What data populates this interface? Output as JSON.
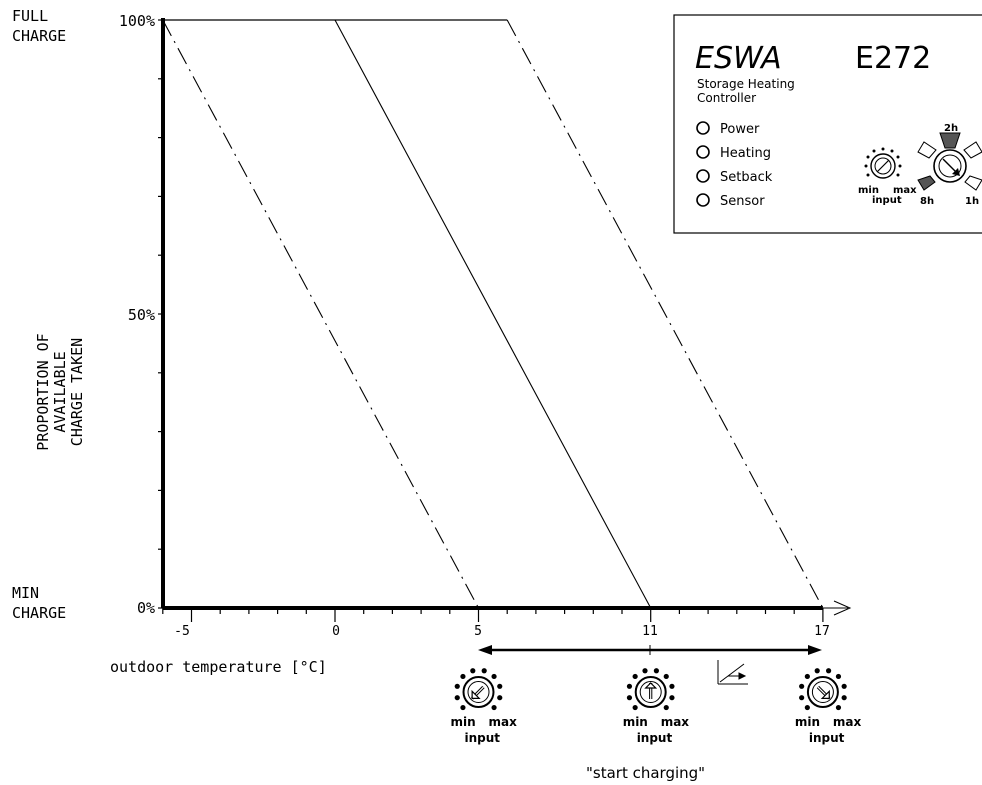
{
  "chart_data": {
    "type": "line",
    "y_top_label_1": "FULL",
    "y_top_label_2": "CHARGE",
    "y_bottom_label_1": "MIN",
    "y_bottom_label_2": "CHARGE",
    "ylabel_lines": [
      "PROPORTION OF",
      "AVAILABLE",
      "CHARGE TAKEN"
    ],
    "xlabel": "outdoor temperature [°C]",
    "y_ticks": [
      "100%",
      "50%",
      "0%"
    ],
    "x_ticks": [
      "-5",
      "0",
      "5",
      "11",
      "17"
    ],
    "xlim": [
      -6,
      17
    ],
    "ylim": [
      0,
      100
    ],
    "series": [
      {
        "style": "dash-dot",
        "x": [
          -6,
          5
        ],
        "y": [
          100,
          0
        ]
      },
      {
        "style": "solid",
        "x": [
          0,
          11
        ],
        "y": [
          100,
          0
        ]
      },
      {
        "style": "dash-dot",
        "x": [
          6,
          17
        ],
        "y": [
          100,
          0
        ]
      }
    ],
    "range_arrow": [
      5,
      17
    ]
  },
  "panel": {
    "brand": "ESWA",
    "model": "E272",
    "subtitle_1": "Storage Heating",
    "subtitle_2": "Controller",
    "leds": [
      "Power",
      "Heating",
      "Setback",
      "Sensor"
    ],
    "knob_min": "min",
    "knob_max": "max",
    "knob_input": "input",
    "time_2h": "2h",
    "time_8h": "8h",
    "time_1h": "1h"
  },
  "knobs": [
    {
      "at": 5,
      "min": "min",
      "max": "max",
      "input": "input"
    },
    {
      "at": 11,
      "min": "min",
      "max": "max",
      "input": "input"
    },
    {
      "at": 17,
      "min": "min",
      "max": "max",
      "input": "input"
    }
  ],
  "caption": "\"start charging\""
}
